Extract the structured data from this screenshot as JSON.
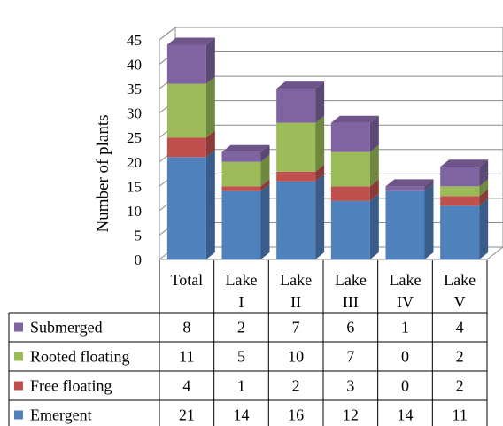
{
  "chart_data": {
    "type": "bar",
    "stacked": true,
    "three_d": true,
    "title": "",
    "xlabel": "",
    "ylabel": "Number of plants",
    "ylim": [
      0,
      45
    ],
    "yticks": [
      0,
      5,
      10,
      15,
      20,
      25,
      30,
      35,
      40,
      45
    ],
    "grid": true,
    "legend_placement": "in data table, left",
    "categories": [
      {
        "line1": "Total",
        "line2": ""
      },
      {
        "line1": "Lake",
        "line2": "I"
      },
      {
        "line1": "Lake",
        "line2": "II"
      },
      {
        "line1": "Lake",
        "line2": "III"
      },
      {
        "line1": "Lake",
        "line2": "IV"
      },
      {
        "line1": "Lake",
        "line2": "V"
      }
    ],
    "series": [
      {
        "name": "Emergent",
        "color": "#4F81BD",
        "values": [
          21,
          14,
          16,
          12,
          14,
          11
        ]
      },
      {
        "name": "Free floating",
        "color": "#C0504D",
        "values": [
          4,
          1,
          2,
          3,
          0,
          2
        ]
      },
      {
        "name": "Rooted floating",
        "color": "#9BBB59",
        "values": [
          11,
          5,
          10,
          7,
          0,
          2
        ]
      },
      {
        "name": "Submerged",
        "color": "#8064A2",
        "values": [
          8,
          2,
          7,
          6,
          1,
          4
        ]
      }
    ],
    "table_row_order": [
      "Submerged",
      "Rooted floating",
      "Free floating",
      "Emergent"
    ]
  }
}
